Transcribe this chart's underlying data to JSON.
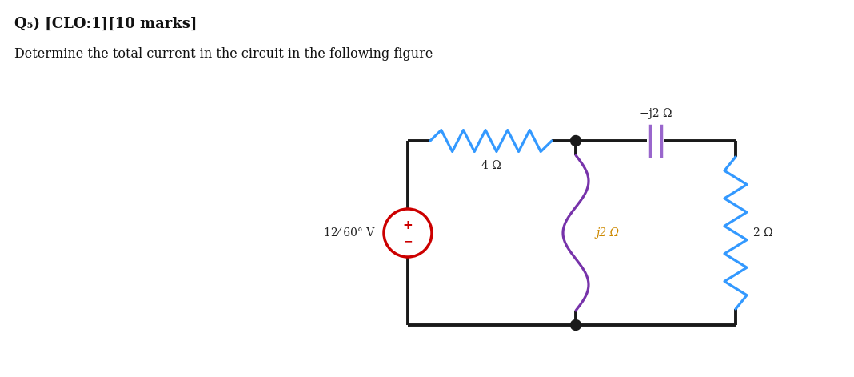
{
  "title_line1": "Q₅) [CLO:1][10 marks]",
  "title_line2": "Determine the total current in the circuit in the following figure",
  "bg_color": "#ffffff",
  "circuit": {
    "source_label": "12⁄̲60° V",
    "r1_label": "4 Ω",
    "r2_label": "j2 Ω",
    "r3_label": "−j2 Ω",
    "r4_label": "2 Ω",
    "wire_color": "#1a1a1a",
    "wire_lw": 2.8,
    "resistor_color_top": "#3399ff",
    "inductor_color": "#7733aa",
    "capacitor_color": "#9966cc",
    "resistor_color_right": "#3399ff",
    "source_circle_color": "#cc0000"
  }
}
